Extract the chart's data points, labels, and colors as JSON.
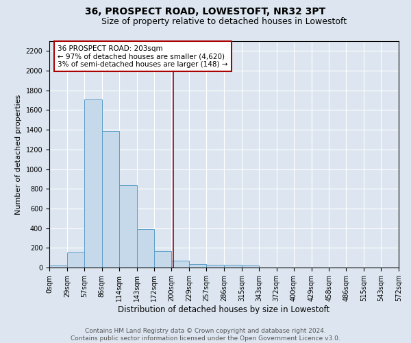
{
  "title1": "36, PROSPECT ROAD, LOWESTOFT, NR32 3PT",
  "title2": "Size of property relative to detached houses in Lowestoft",
  "xlabel": "Distribution of detached houses by size in Lowestoft",
  "ylabel": "Number of detached properties",
  "bar_color": "#c5d9eb",
  "bar_edge_color": "#5a9dc8",
  "background_color": "#dde6f0",
  "grid_color": "#ffffff",
  "bins": [
    0,
    29,
    57,
    86,
    114,
    143,
    172,
    200,
    229,
    257,
    286,
    315,
    343,
    372,
    400,
    429,
    458,
    486,
    515,
    543,
    572
  ],
  "counts": [
    20,
    155,
    1710,
    1390,
    835,
    390,
    165,
    70,
    35,
    30,
    30,
    20,
    0,
    0,
    0,
    0,
    0,
    0,
    0,
    0
  ],
  "property_size": 203,
  "property_line_color": "#aa0000",
  "annotation_title": "36 PROSPECT ROAD: 203sqm",
  "annotation_line1": "← 97% of detached houses are smaller (4,620)",
  "annotation_line2": "3% of semi-detached houses are larger (148) →",
  "annotation_box_color": "#ffffff",
  "annotation_border_color": "#aa0000",
  "ylim": [
    0,
    2300
  ],
  "yticks": [
    0,
    200,
    400,
    600,
    800,
    1000,
    1200,
    1400,
    1600,
    1800,
    2000,
    2200
  ],
  "xtick_labels": [
    "0sqm",
    "29sqm",
    "57sqm",
    "86sqm",
    "114sqm",
    "143sqm",
    "172sqm",
    "200sqm",
    "229sqm",
    "257sqm",
    "286sqm",
    "315sqm",
    "343sqm",
    "372sqm",
    "400sqm",
    "429sqm",
    "458sqm",
    "486sqm",
    "515sqm",
    "543sqm",
    "572sqm"
  ],
  "footer_line1": "Contains HM Land Registry data © Crown copyright and database right 2024.",
  "footer_line2": "Contains public sector information licensed under the Open Government Licence v3.0.",
  "title1_fontsize": 10,
  "title2_fontsize": 9,
  "xlabel_fontsize": 8.5,
  "ylabel_fontsize": 8,
  "tick_fontsize": 7,
  "footer_fontsize": 6.5,
  "annotation_fontsize": 7.5
}
